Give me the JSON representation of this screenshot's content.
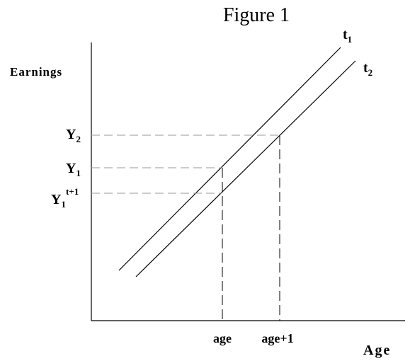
{
  "title": "Figure 1",
  "y_axis_label": "Earnings",
  "x_axis_label": "Age",
  "lines": [
    {
      "label": {
        "text": "t",
        "sub": "1"
      }
    },
    {
      "label": {
        "text": "t",
        "sub": "2"
      }
    }
  ],
  "y_labels": [
    {
      "text": "Y",
      "sub": "2"
    },
    {
      "text": "Y",
      "sub": "1"
    },
    {
      "text": "Y",
      "sub": "1",
      "sup": "t+1"
    }
  ],
  "x_labels": [
    "age",
    "age+1"
  ]
}
